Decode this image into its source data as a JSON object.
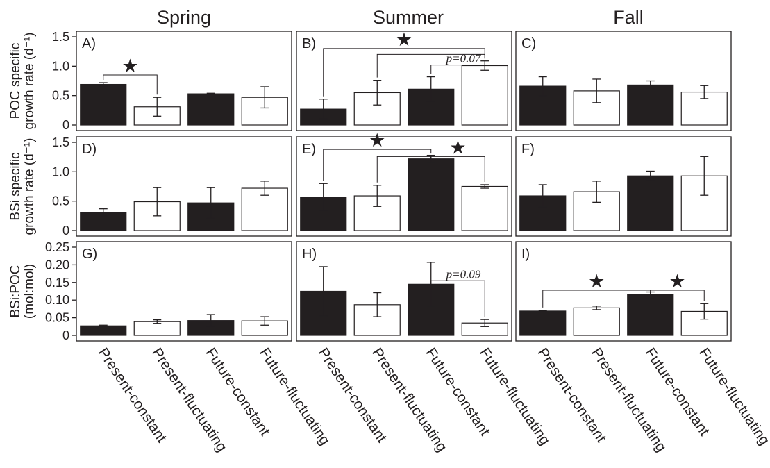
{
  "colors": {
    "ink": "#231f20",
    "filled_bar": "#231f20",
    "open_bar": "#ffffff"
  },
  "chart_data": {
    "type": "bar",
    "seasons": [
      "Spring",
      "Summer",
      "Fall"
    ],
    "categories": [
      "Present-constant",
      "Present-fluctuating",
      "Future-constant",
      "Future-fluctuating"
    ],
    "bar_fill": [
      "filled",
      "open",
      "filled",
      "open"
    ],
    "rows": [
      {
        "ylabel_lines": [
          "POC specific",
          "growth rate (d⁻¹)"
        ],
        "ylim": [
          0,
          1.5
        ],
        "ticks": [
          0,
          0.5,
          1.0,
          1.5
        ],
        "tick_labels": [
          "0",
          "0.5",
          "1.0",
          "1.5"
        ],
        "panels": [
          {
            "label": "A)",
            "values": [
              0.69,
              0.31,
              0.53,
              0.47
            ],
            "errors": [
              0.03,
              0.16,
              0.01,
              0.18
            ],
            "brackets": [
              {
                "from": 0,
                "to": 1,
                "y": 0.85,
                "mark": "★"
              }
            ]
          },
          {
            "label": "B)",
            "values": [
              0.27,
              0.55,
              0.61,
              1.01
            ],
            "errors": [
              0.17,
              0.21,
              0.21,
              0.08
            ],
            "brackets": [
              {
                "from": 0,
                "to": 3,
                "y": 1.3,
                "mark": "★"
              },
              {
                "from": 1,
                "to": 3,
                "y": 1.2,
                "mark": ""
              },
              {
                "from": 2,
                "to": 3,
                "y": 1.02,
                "mark": "p=0.07"
              }
            ]
          },
          {
            "label": "C)",
            "values": [
              0.66,
              0.58,
              0.68,
              0.56
            ],
            "errors": [
              0.16,
              0.2,
              0.07,
              0.11
            ],
            "brackets": []
          }
        ]
      },
      {
        "ylabel_lines": [
          "BSi specific",
          "growth rate (d⁻¹)"
        ],
        "ylim": [
          0,
          1.5
        ],
        "ticks": [
          0,
          0.5,
          1.0,
          1.5
        ],
        "tick_labels": [
          "0",
          "0.5",
          "1.0",
          "1.5"
        ],
        "panels": [
          {
            "label": "D)",
            "values": [
              0.31,
              0.49,
              0.47,
              0.72
            ],
            "errors": [
              0.06,
              0.24,
              0.26,
              0.12
            ],
            "brackets": []
          },
          {
            "label": "E)",
            "values": [
              0.57,
              0.59,
              1.22,
              0.75
            ],
            "errors": [
              0.23,
              0.18,
              0.06,
              0.03
            ],
            "brackets": [
              {
                "from": 0,
                "to": 2,
                "y": 1.38,
                "mark": "★"
              },
              {
                "from": 1,
                "to": 2,
                "y": 1.26,
                "mark": ""
              },
              {
                "from": 2,
                "to": 3,
                "y": 1.26,
                "mark": "★"
              }
            ]
          },
          {
            "label": "F)",
            "values": [
              0.59,
              0.66,
              0.93,
              0.93
            ],
            "errors": [
              0.19,
              0.18,
              0.08,
              0.33
            ],
            "brackets": []
          }
        ]
      },
      {
        "ylabel_lines": [
          "BSi:POC",
          "(mol:mol)"
        ],
        "ylim": [
          0,
          0.25
        ],
        "ticks": [
          0,
          0.05,
          0.1,
          0.15,
          0.2,
          0.25
        ],
        "tick_labels": [
          "0",
          "0.05",
          "0.10",
          "0.15",
          "0.20",
          "0.25"
        ],
        "panels": [
          {
            "label": "G)",
            "values": [
              0.027,
              0.039,
              0.042,
              0.041
            ],
            "errors": [
              0.002,
              0.005,
              0.017,
              0.012
            ],
            "brackets": []
          },
          {
            "label": "H)",
            "values": [
              0.125,
              0.087,
              0.145,
              0.035
            ],
            "errors": [
              0.07,
              0.034,
              0.062,
              0.01
            ],
            "brackets": [
              {
                "from": 2,
                "to": 3,
                "y": 0.155,
                "mark": "p=0.09"
              }
            ]
          },
          {
            "label": "I)",
            "values": [
              0.069,
              0.078,
              0.115,
              0.068
            ],
            "errors": [
              0.002,
              0.005,
              0.008,
              0.022
            ],
            "brackets": [
              {
                "from": 0,
                "to": 2,
                "y": 0.128,
                "mark": "★"
              },
              {
                "from": 2,
                "to": 3,
                "y": 0.128,
                "mark": "★"
              }
            ]
          }
        ]
      }
    ]
  }
}
